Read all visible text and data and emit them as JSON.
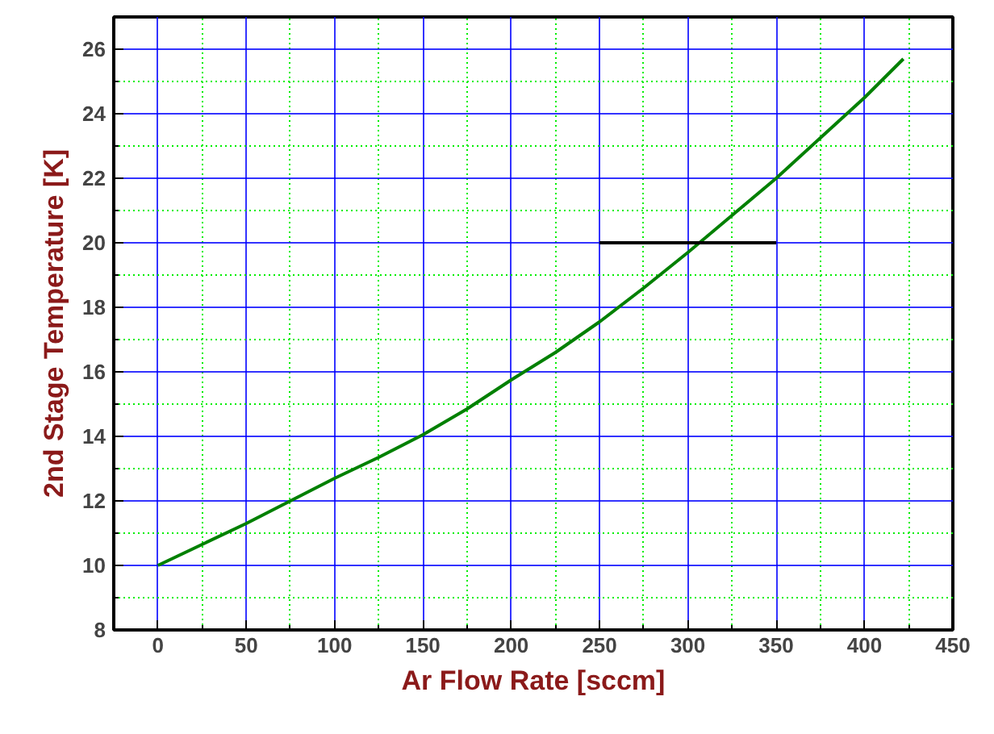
{
  "chart_data": {
    "type": "line",
    "xlabel": "Ar Flow Rate [sccm]",
    "ylabel": "2nd Stage Temperature [K]",
    "xlim": [
      -25,
      450
    ],
    "ylim": [
      8,
      27
    ],
    "xticks": [
      0,
      {
        "value": 25,
        "label": null
      },
      50,
      {
        "value": 75,
        "label": null
      },
      100,
      {
        "value": 125,
        "label": null
      },
      150,
      {
        "value": 175,
        "label": null
      },
      200,
      {
        "value": 225,
        "label": null
      },
      250,
      {
        "value": 275,
        "label": null
      },
      300,
      {
        "value": 325,
        "label": null
      },
      350,
      {
        "value": 375,
        "label": null
      },
      400,
      {
        "value": 425,
        "label": null
      },
      450
    ],
    "yticks": [
      8,
      {
        "value": 9,
        "label": null
      },
      10,
      {
        "value": 11,
        "label": null
      },
      12,
      {
        "value": 13,
        "label": null
      },
      14,
      {
        "value": 15,
        "label": null
      },
      16,
      {
        "value": 17,
        "label": null
      },
      18,
      {
        "value": 19,
        "label": null
      },
      20,
      {
        "value": 21,
        "label": null
      },
      22,
      {
        "value": 23,
        "label": null
      },
      24,
      {
        "value": 25,
        "label": null
      },
      26
    ],
    "grid": true,
    "line_style": "solid",
    "marker": "none",
    "series": [
      {
        "color": "#008000",
        "x": [
          0,
          25,
          50,
          75,
          100,
          125,
          150,
          175,
          200,
          225,
          250,
          275,
          300,
          325,
          350,
          375,
          400,
          422
        ],
        "values": [
          10,
          10.65,
          11.3,
          12,
          12.7,
          13.35,
          14.05,
          14.85,
          15.75,
          16.6,
          17.55,
          18.6,
          19.7,
          20.85,
          22,
          23.25,
          24.5,
          25.7
        ]
      },
      {
        "color": "#000000",
        "x": [
          250,
          350
        ],
        "values": [
          20,
          20
        ]
      }
    ]
  }
}
